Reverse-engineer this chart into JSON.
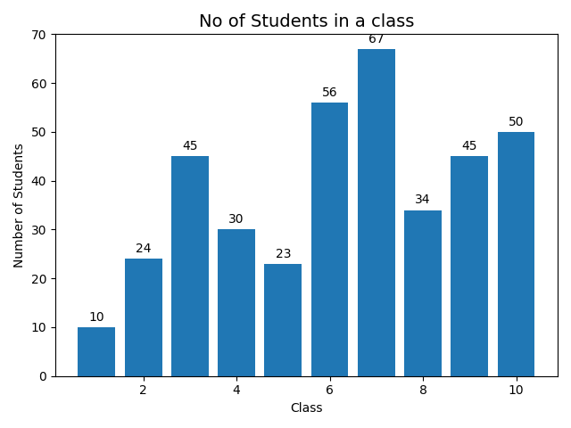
{
  "classes": [
    1,
    2,
    3,
    4,
    5,
    6,
    7,
    8,
    9,
    10
  ],
  "students": [
    10,
    24,
    45,
    30,
    23,
    56,
    67,
    34,
    45,
    50
  ],
  "bar_color": "#2077b4",
  "title": "No of Students in a class",
  "xlabel": "Class",
  "ylabel": "Number of Students",
  "ylim": [
    0,
    70
  ],
  "title_fontsize": 14,
  "label_fontsize": 10,
  "annotation_fontsize": 10,
  "xticks_shown": [
    2,
    4,
    6,
    8,
    10
  ]
}
